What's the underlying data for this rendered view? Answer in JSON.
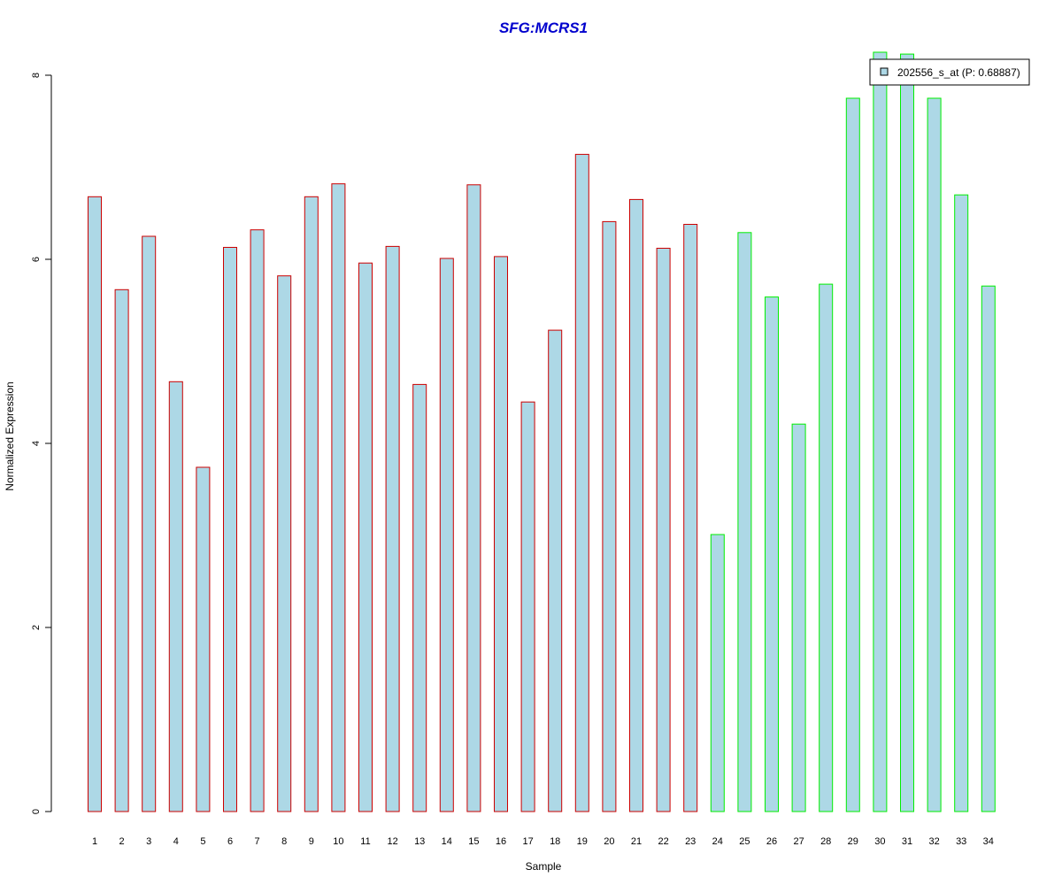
{
  "chart_data": {
    "type": "bar",
    "title": "SFG:MCRS1",
    "xlabel": "Sample",
    "ylabel": "Normalized Expression",
    "ylim": [
      0,
      8
    ],
    "yticks": [
      0,
      2,
      4,
      6,
      8
    ],
    "categories": [
      "1",
      "2",
      "3",
      "4",
      "5",
      "6",
      "7",
      "8",
      "9",
      "10",
      "11",
      "12",
      "13",
      "14",
      "15",
      "16",
      "17",
      "18",
      "19",
      "20",
      "21",
      "22",
      "23",
      "24",
      "25",
      "26",
      "27",
      "28",
      "29",
      "30",
      "31",
      "32",
      "33",
      "34"
    ],
    "values": [
      6.68,
      5.67,
      6.25,
      4.67,
      3.74,
      6.13,
      6.32,
      5.82,
      6.68,
      6.82,
      5.96,
      6.14,
      4.64,
      6.01,
      6.81,
      6.03,
      4.45,
      5.23,
      7.14,
      6.41,
      6.65,
      6.12,
      6.38,
      3.01,
      6.29,
      5.59,
      4.21,
      5.73,
      7.75,
      8.25,
      8.23,
      7.75,
      6.7,
      5.71
    ],
    "bar_fill": "#add8e6",
    "group_colors": [
      "#cc0000",
      "#00ee00"
    ],
    "groups": [
      0,
      0,
      0,
      0,
      0,
      0,
      0,
      0,
      0,
      0,
      0,
      0,
      0,
      0,
      0,
      0,
      0,
      0,
      0,
      0,
      0,
      0,
      0,
      1,
      1,
      1,
      1,
      1,
      1,
      1,
      1,
      1,
      1,
      1
    ],
    "legend": {
      "label": "202556_s_at (P: 0.68887)",
      "position": "top-right"
    },
    "grid": false
  }
}
